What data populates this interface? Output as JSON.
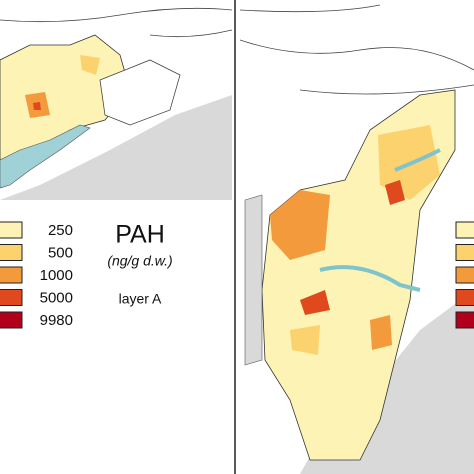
{
  "title": "PAH",
  "unit": "(ng/g d.w.)",
  "layer": "layer A",
  "legend": {
    "items": [
      {
        "label": "250",
        "color": "#fdf3b4"
      },
      {
        "label": "500",
        "color": "#fbd26e"
      },
      {
        "label": "1000",
        "color": "#f39a3c"
      },
      {
        "label": "5000",
        "color": "#e0481e"
      },
      {
        "label": "9980",
        "color": "#b0001c"
      }
    ]
  }
}
